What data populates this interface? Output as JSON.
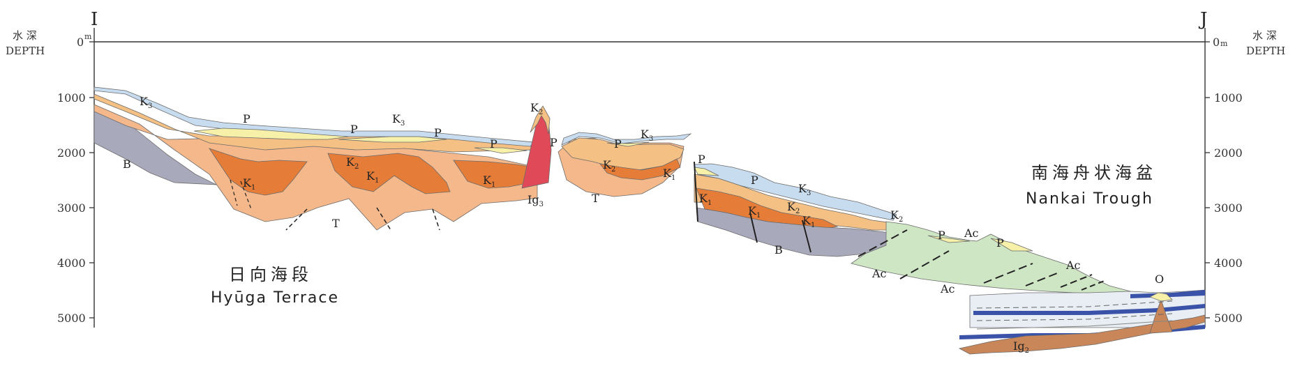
{
  "section": {
    "start_point": "I",
    "end_point": "J",
    "depth_caption_jp": "水 深",
    "depth_caption_en": "DEPTH",
    "depth_unit": "m",
    "depth_ticks": [
      "0",
      "1000",
      "2000",
      "3000",
      "4000",
      "5000"
    ],
    "region_left": {
      "jp": "日向海段",
      "en": "Hyūga Terrace"
    },
    "region_right": {
      "jp": "南海舟状海盆",
      "en": "Nankai Trough"
    },
    "units": {
      "K": "K",
      "P": "P",
      "B": "B",
      "T": "T",
      "Ig": "Ig",
      "Ac": "Ac",
      "O": "O"
    },
    "subscripts": {
      "one": "1",
      "two": "2",
      "three": "3"
    },
    "colors": {
      "P": "#f6f0a8",
      "K3": "#c8dcef",
      "K2": "#f5c083",
      "K1": "#e57d38",
      "T": "#f4b88a",
      "B": "#a9a9bc",
      "Ig3": "#e04a58",
      "Ac": "#cfe6c4",
      "Ig2": "#c98658",
      "blue_band": "#3a53a8"
    }
  }
}
